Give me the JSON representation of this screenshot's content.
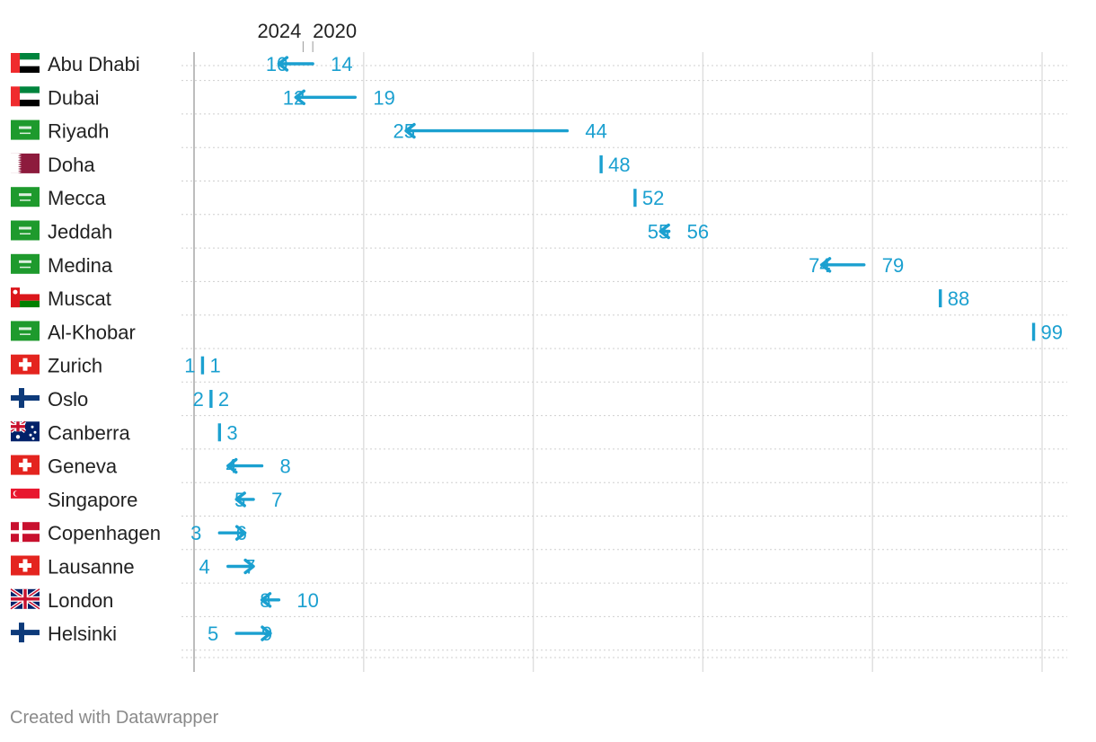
{
  "chart_data": {
    "type": "arrow",
    "title": "",
    "legend": {
      "start_label": "2020",
      "end_label": "2024"
    },
    "xlim": [
      0,
      100
    ],
    "x_gridlines": [
      0,
      20,
      40,
      60,
      80,
      100
    ],
    "tick_labels_shown": false,
    "arrow_color": "#1ba0d0",
    "rows": [
      {
        "city": "Abu Dhabi",
        "flag": "uae-flag",
        "value_2020": 14,
        "value_2024": 10
      },
      {
        "city": "Dubai",
        "flag": "uae-flag",
        "value_2020": 19,
        "value_2024": 12
      },
      {
        "city": "Riyadh",
        "flag": "saudi-flag",
        "value_2020": 44,
        "value_2024": 25
      },
      {
        "city": "Doha",
        "flag": "qatar-flag",
        "value_2020": 48,
        "value_2024": 48
      },
      {
        "city": "Mecca",
        "flag": "saudi-flag",
        "value_2020": 52,
        "value_2024": 52
      },
      {
        "city": "Jeddah",
        "flag": "saudi-flag",
        "value_2020": 56,
        "value_2024": 55
      },
      {
        "city": "Medina",
        "flag": "saudi-flag",
        "value_2020": 79,
        "value_2024": 74
      },
      {
        "city": "Muscat",
        "flag": "oman-flag",
        "value_2020": 88,
        "value_2024": 88
      },
      {
        "city": "Al-Khobar",
        "flag": "saudi-flag",
        "value_2020": 99,
        "value_2024": 99
      },
      {
        "city": "Zurich",
        "flag": "swiss-flag",
        "value_2020": 1,
        "value_2024": 1
      },
      {
        "city": "Oslo",
        "flag": "finland-flag",
        "value_2020": 2,
        "value_2024": 2
      },
      {
        "city": "Canberra",
        "flag": "australia-flag",
        "value_2020": 3,
        "value_2024": 3
      },
      {
        "city": "Geneva",
        "flag": "swiss-flag",
        "value_2020": 8,
        "value_2024": 4
      },
      {
        "city": "Singapore",
        "flag": "singapore-flag",
        "value_2020": 7,
        "value_2024": 5
      },
      {
        "city": "Copenhagen",
        "flag": "denmark-flag",
        "value_2020": 3,
        "value_2024": 6
      },
      {
        "city": "Lausanne",
        "flag": "swiss-flag",
        "value_2020": 4,
        "value_2024": 7
      },
      {
        "city": "London",
        "flag": "uk-flag",
        "value_2020": 10,
        "value_2024": 8
      },
      {
        "city": "Helsinki",
        "flag": "finland-flag",
        "value_2020": 5,
        "value_2024": 9
      }
    ]
  },
  "footer": {
    "credit": "Created with Datawrapper"
  }
}
